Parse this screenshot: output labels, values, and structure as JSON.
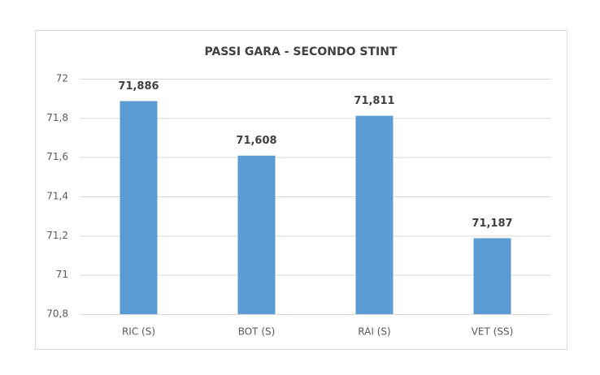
{
  "chart_data": {
    "type": "bar",
    "title": "PASSI GARA - SECONDO STINT",
    "categories": [
      "RIC (S)",
      "BOT (S)",
      "RAI (S)",
      "VET (SS)"
    ],
    "values": [
      71.886,
      71.608,
      71.811,
      71.187
    ],
    "value_labels": [
      "71,886",
      "71,608",
      "71,811",
      "71,187"
    ],
    "color": "#5b9bd5",
    "ylim": [
      70.8,
      72
    ],
    "yticks": [
      {
        "value": 70.8,
        "label": "70,8"
      },
      71,
      {
        "value": 71.2,
        "label": "71,2"
      },
      {
        "value": 71.4,
        "label": "71,4"
      },
      {
        "value": 71.6,
        "label": "71,6"
      },
      {
        "value": 71.8,
        "label": "71,8"
      },
      72
    ],
    "grid": true
  }
}
